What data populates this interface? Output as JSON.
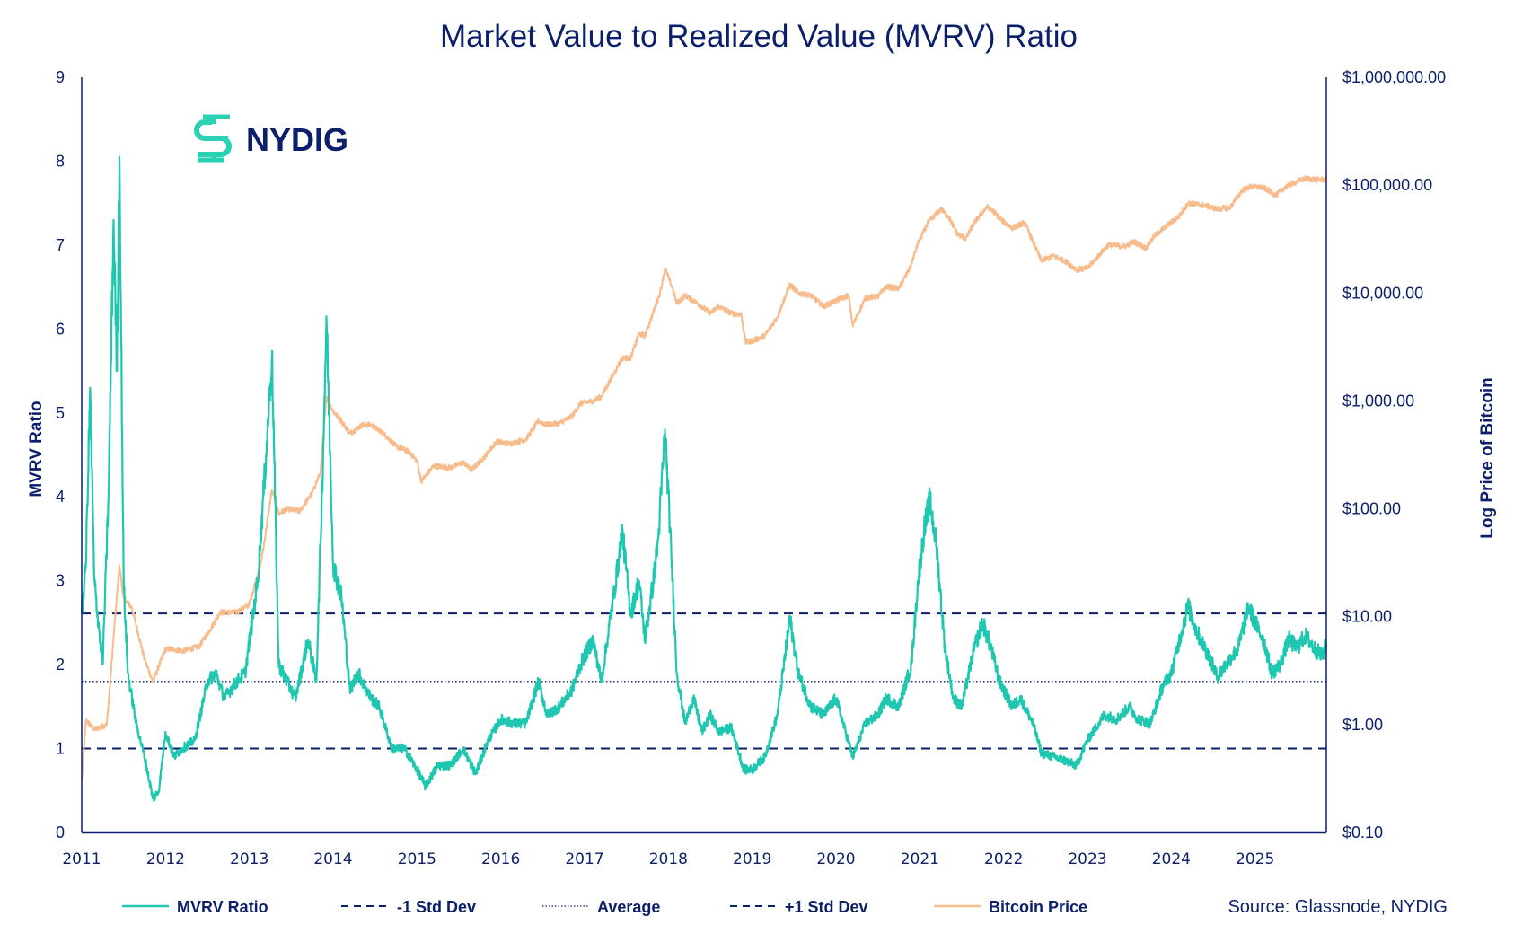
{
  "colors": {
    "navy": "#0b1f6b",
    "mvrv": "#1fc7b0",
    "price": "#f8bb8c",
    "logo_accent": "#2bd0b5"
  },
  "logo": {
    "text": "NYDIG",
    "icon": "nydig-logo-icon"
  },
  "source_note": "Source: Glassnode, NYDIG",
  "chart_data": {
    "type": "line",
    "title": "Market Value to Realized Value (MVRV) Ratio",
    "xlabel": "",
    "ylabel": "MVRV Ratio",
    "ylabel_right": "Log Price of Bitcoin",
    "x_range": [
      2011.0,
      2025.85
    ],
    "x_ticks": [
      "2011",
      "2012",
      "2013",
      "2014",
      "2015",
      "2016",
      "2017",
      "2018",
      "2019",
      "2020",
      "2021",
      "2022",
      "2023",
      "2024",
      "2025"
    ],
    "ylim": [
      0,
      9
    ],
    "y_ticks": [
      "0",
      "1",
      "2",
      "3",
      "4",
      "5",
      "6",
      "7",
      "8",
      "9"
    ],
    "ylim_right": [
      0.1,
      1000000
    ],
    "y_right_scale": "log",
    "y_right_ticks": [
      "$0.10",
      "$1.00",
      "$10.00",
      "$100.00",
      "$1,000.00",
      "$10,000.00",
      "$100,000.00",
      "$1,000,000.00"
    ],
    "grid": false,
    "legend_position": "bottom",
    "reference_lines": [
      {
        "name": "-1 Std Dev",
        "value": 1.0,
        "style": "dashed"
      },
      {
        "name": "Average",
        "value": 1.8,
        "style": "dotted"
      },
      {
        "name": "+1 Std Dev",
        "value": 2.61,
        "style": "dashed"
      }
    ],
    "legend": [
      "MVRV Ratio",
      "-1 Std Dev",
      "Average",
      "+1 Std Dev",
      "Bitcoin Price"
    ],
    "series": [
      {
        "name": "MVRV Ratio",
        "axis": "left",
        "x": [
          2011.0,
          2011.05,
          2011.1,
          2011.15,
          2011.25,
          2011.32,
          2011.38,
          2011.42,
          2011.45,
          2011.5,
          2011.55,
          2011.65,
          2011.75,
          2011.85,
          2011.92,
          2012.0,
          2012.1,
          2012.2,
          2012.35,
          2012.5,
          2012.6,
          2012.7,
          2012.85,
          2012.95,
          2013.1,
          2013.2,
          2013.27,
          2013.35,
          2013.45,
          2013.55,
          2013.7,
          2013.8,
          2013.88,
          2013.92,
          2014.0,
          2014.1,
          2014.2,
          2014.3,
          2014.45,
          2014.55,
          2014.7,
          2014.85,
          2015.0,
          2015.1,
          2015.25,
          2015.4,
          2015.55,
          2015.7,
          2015.85,
          2016.0,
          2016.15,
          2016.3,
          2016.45,
          2016.55,
          2016.7,
          2016.85,
          2016.95,
          2017.1,
          2017.2,
          2017.4,
          2017.45,
          2017.55,
          2017.65,
          2017.72,
          2017.82,
          2017.88,
          2017.96,
          2018.05,
          2018.1,
          2018.2,
          2018.3,
          2018.4,
          2018.5,
          2018.6,
          2018.75,
          2018.9,
          2019.0,
          2019.15,
          2019.3,
          2019.45,
          2019.55,
          2019.7,
          2019.85,
          2020.0,
          2020.2,
          2020.35,
          2020.5,
          2020.6,
          2020.75,
          2020.9,
          2020.98,
          2021.05,
          2021.12,
          2021.2,
          2021.3,
          2021.4,
          2021.5,
          2021.65,
          2021.75,
          2021.85,
          2021.95,
          2022.1,
          2022.2,
          2022.35,
          2022.45,
          2022.6,
          2022.75,
          2022.87,
          2023.0,
          2023.2,
          2023.35,
          2023.5,
          2023.6,
          2023.75,
          2023.9,
          2024.0,
          2024.1,
          2024.2,
          2024.3,
          2024.45,
          2024.55,
          2024.65,
          2024.8,
          2024.92,
          2025.0,
          2025.1,
          2025.2,
          2025.3,
          2025.4,
          2025.5,
          2025.6,
          2025.7,
          2025.8,
          2025.85
        ],
        "values": [
          2.6,
          3.2,
          5.3,
          3.0,
          2.0,
          4.0,
          7.3,
          5.5,
          8.05,
          3.0,
          1.9,
          1.3,
          0.9,
          0.4,
          0.5,
          1.2,
          0.9,
          1.0,
          1.1,
          1.8,
          1.9,
          1.6,
          1.8,
          1.9,
          3.0,
          4.5,
          5.7,
          2.0,
          1.8,
          1.6,
          2.3,
          1.8,
          4.5,
          6.15,
          3.2,
          2.8,
          1.7,
          1.9,
          1.6,
          1.5,
          1.0,
          1.0,
          0.75,
          0.55,
          0.8,
          0.8,
          1.0,
          0.7,
          1.1,
          1.35,
          1.3,
          1.3,
          1.8,
          1.4,
          1.5,
          1.7,
          2.0,
          2.3,
          1.8,
          3.2,
          3.6,
          2.6,
          3.0,
          2.3,
          3.0,
          3.5,
          4.8,
          3.0,
          1.9,
          1.3,
          1.6,
          1.2,
          1.4,
          1.2,
          1.25,
          0.75,
          0.75,
          0.9,
          1.4,
          2.55,
          1.9,
          1.5,
          1.4,
          1.6,
          0.9,
          1.3,
          1.4,
          1.6,
          1.5,
          2.0,
          3.0,
          3.6,
          3.95,
          3.4,
          2.2,
          1.6,
          1.5,
          2.2,
          2.5,
          2.2,
          1.8,
          1.5,
          1.6,
          1.3,
          0.95,
          0.9,
          0.85,
          0.8,
          1.1,
          1.4,
          1.35,
          1.5,
          1.35,
          1.3,
          1.75,
          1.9,
          2.3,
          2.7,
          2.4,
          2.1,
          1.85,
          2.0,
          2.2,
          2.7,
          2.5,
          2.3,
          1.9,
          2.0,
          2.3,
          2.2,
          2.35,
          2.2,
          2.1,
          2.25
        ]
      },
      {
        "name": "Bitcoin Price",
        "axis": "right",
        "x": [
          2011.0,
          2011.05,
          2011.15,
          2011.3,
          2011.4,
          2011.45,
          2011.5,
          2011.6,
          2011.75,
          2011.85,
          2011.95,
          2012.0,
          2012.1,
          2012.2,
          2012.4,
          2012.55,
          2012.65,
          2012.85,
          2013.0,
          2013.15,
          2013.27,
          2013.35,
          2013.45,
          2013.6,
          2013.75,
          2013.85,
          2013.92,
          2014.0,
          2014.1,
          2014.2,
          2014.35,
          2014.45,
          2014.6,
          2014.75,
          2014.9,
          2015.0,
          2015.05,
          2015.2,
          2015.4,
          2015.55,
          2015.65,
          2015.8,
          2015.95,
          2016.1,
          2016.3,
          2016.45,
          2016.55,
          2016.7,
          2016.85,
          2016.95,
          2017.1,
          2017.2,
          2017.35,
          2017.45,
          2017.55,
          2017.65,
          2017.72,
          2017.8,
          2017.9,
          2017.96,
          2018.05,
          2018.1,
          2018.2,
          2018.35,
          2018.5,
          2018.6,
          2018.75,
          2018.87,
          2018.92,
          2019.0,
          2019.15,
          2019.3,
          2019.45,
          2019.55,
          2019.7,
          2019.85,
          2020.0,
          2020.15,
          2020.2,
          2020.35,
          2020.5,
          2020.6,
          2020.75,
          2020.88,
          2020.98,
          2021.1,
          2021.25,
          2021.35,
          2021.45,
          2021.55,
          2021.65,
          2021.8,
          2021.88,
          2021.98,
          2022.1,
          2022.25,
          2022.35,
          2022.45,
          2022.6,
          2022.75,
          2022.87,
          2023.0,
          2023.15,
          2023.25,
          2023.45,
          2023.55,
          2023.7,
          2023.8,
          2023.95,
          2024.1,
          2024.2,
          2024.4,
          2024.55,
          2024.7,
          2024.85,
          2024.95,
          2025.1,
          2025.25,
          2025.35,
          2025.5,
          2025.6,
          2025.75,
          2025.85
        ],
        "values": [
          0.3,
          1.1,
          0.9,
          1.0,
          10,
          30,
          15,
          12,
          4,
          2.5,
          4,
          5,
          5,
          4.8,
          5.3,
          8,
          11,
          11,
          13,
          35,
          150,
          90,
          100,
          95,
          140,
          220,
          1100,
          800,
          650,
          500,
          600,
          600,
          500,
          380,
          340,
          280,
          180,
          250,
          240,
          270,
          230,
          300,
          420,
          400,
          440,
          650,
          600,
          620,
          720,
          950,
          1000,
          1100,
          1800,
          2500,
          2500,
          4200,
          4000,
          6000,
          10000,
          17000,
          11000,
          8000,
          9500,
          8000,
          6500,
          7500,
          6500,
          6300,
          3500,
          3600,
          4000,
          6000,
          12000,
          10000,
          9500,
          7500,
          8500,
          9500,
          5000,
          9000,
          9300,
          11500,
          11000,
          17000,
          29000,
          45000,
          60000,
          50000,
          35000,
          32000,
          45000,
          63000,
          57000,
          47000,
          40000,
          45000,
          30000,
          20000,
          22000,
          19500,
          16500,
          17000,
          23000,
          28000,
          27000,
          30000,
          26000,
          34000,
          42000,
          52000,
          68000,
          65000,
          60000,
          62000,
          90000,
          97000,
          95000,
          80000,
          95000,
          108000,
          115000,
          112000,
          113000
        ]
      }
    ]
  }
}
